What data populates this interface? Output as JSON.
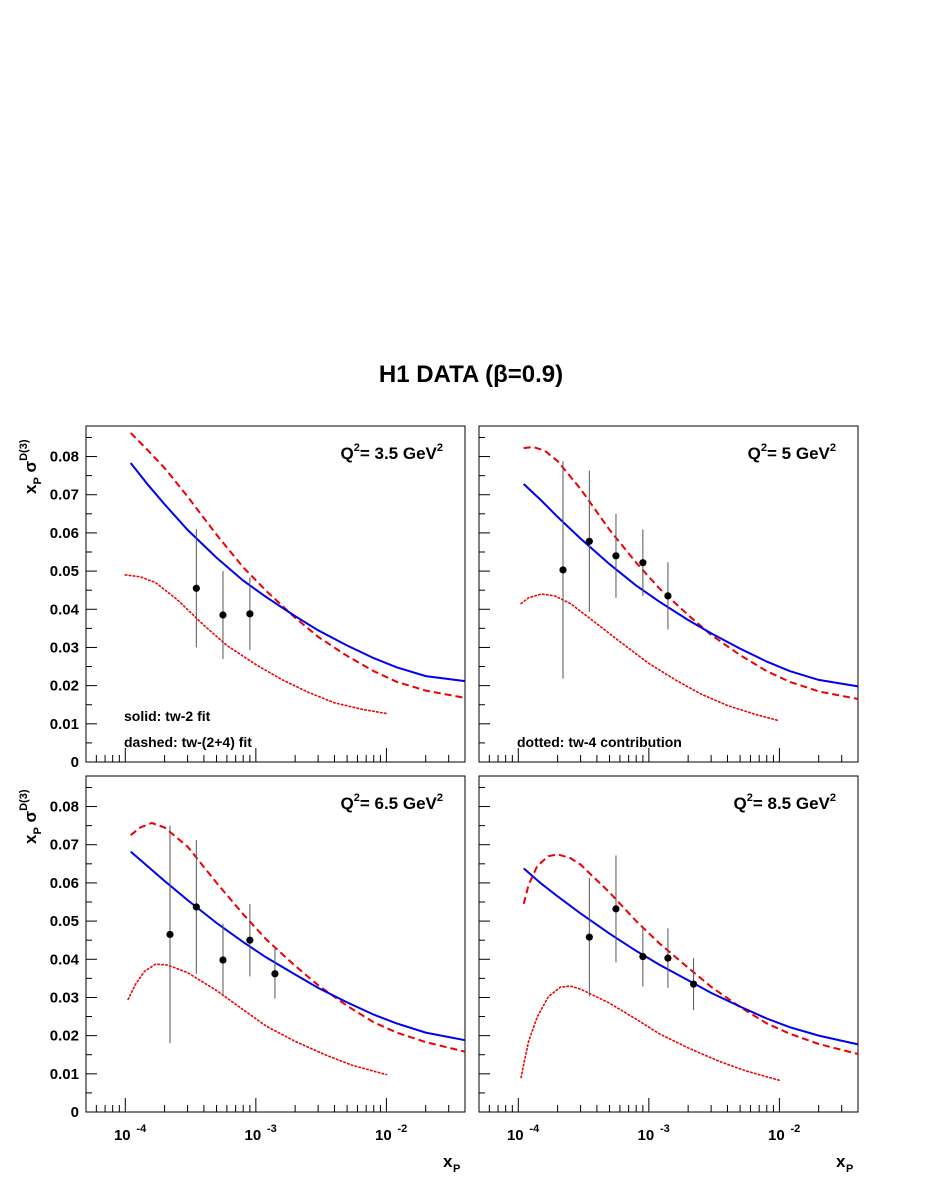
{
  "page": {
    "title": "H1 DATA (β=0.9)"
  },
  "chart_data": {
    "type": "scatter",
    "title": "H1 DATA (β=0.9)",
    "xlabel": "x_P",
    "ylabel": "x_P σ^D(3)",
    "x_scale": "log",
    "xlim": [
      5e-05,
      0.04
    ],
    "ylim": [
      0,
      0.088
    ],
    "y_ticks": [
      0,
      0.01,
      0.02,
      0.03,
      0.04,
      0.05,
      0.06,
      0.07,
      0.08
    ],
    "y_tick_labels": [
      "0",
      "0.01",
      "0.02",
      "0.03",
      "0.04",
      "0.05",
      "0.06",
      "0.07",
      "0.08"
    ],
    "x_tick_labels": [
      {
        "value": 0.0001,
        "base": "10",
        "exp": "-4"
      },
      {
        "value": 0.001,
        "base": "10",
        "exp": "-3"
      },
      {
        "value": 0.01,
        "base": "10",
        "exp": "-2"
      }
    ],
    "legend_notes": {
      "solid": "solid:  tw-2 fit",
      "dashed": "dashed: tw-(2+4) fit",
      "dotted": "dotted:  tw-4 contribution"
    },
    "series_styles": {
      "tw2": {
        "color": "#0000ee",
        "line": "solid"
      },
      "tw24": {
        "color": "#ee0000",
        "line": "dashed"
      },
      "tw4": {
        "color": "#ee0000",
        "line": "dotted"
      },
      "data": {
        "color": "#000000"
      }
    },
    "panels": [
      {
        "label_base": "Q",
        "label_sup": "2",
        "label_mid": "= 3.5 GeV",
        "label_sup2": "2",
        "points": [
          {
            "x": 0.00035,
            "y": 0.0455,
            "err": 0.0155
          },
          {
            "x": 0.00056,
            "y": 0.0385,
            "err": 0.0115
          },
          {
            "x": 0.0009,
            "y": 0.0388,
            "err": 0.0095
          }
        ],
        "tw2": [
          [
            0.00011,
            0.0783
          ],
          [
            0.00015,
            0.0725
          ],
          [
            0.0002,
            0.0675
          ],
          [
            0.0003,
            0.0608
          ],
          [
            0.0005,
            0.0535
          ],
          [
            0.0008,
            0.0475
          ],
          [
            0.0012,
            0.0432
          ],
          [
            0.002,
            0.0382
          ],
          [
            0.003,
            0.0345
          ],
          [
            0.005,
            0.0305
          ],
          [
            0.008,
            0.0272
          ],
          [
            0.012,
            0.0248
          ],
          [
            0.02,
            0.0225
          ],
          [
            0.04,
            0.0212
          ]
        ],
        "tw24": [
          [
            0.00011,
            0.0862
          ],
          [
            0.00015,
            0.0815
          ],
          [
            0.0002,
            0.077
          ],
          [
            0.0003,
            0.0695
          ],
          [
            0.0005,
            0.0595
          ],
          [
            0.0008,
            0.051
          ],
          [
            0.0012,
            0.0448
          ],
          [
            0.002,
            0.0378
          ],
          [
            0.003,
            0.0328
          ],
          [
            0.005,
            0.0278
          ],
          [
            0.008,
            0.0238
          ],
          [
            0.012,
            0.021
          ],
          [
            0.02,
            0.0187
          ],
          [
            0.04,
            0.0168
          ]
        ],
        "tw4": [
          [
            0.0001,
            0.049
          ],
          [
            0.00013,
            0.0485
          ],
          [
            0.00017,
            0.047
          ],
          [
            0.00025,
            0.0425
          ],
          [
            0.0004,
            0.0358
          ],
          [
            0.0006,
            0.0305
          ],
          [
            0.001,
            0.0255
          ],
          [
            0.0016,
            0.0215
          ],
          [
            0.0025,
            0.0183
          ],
          [
            0.004,
            0.0155
          ],
          [
            0.0065,
            0.0138
          ],
          [
            0.01,
            0.0127
          ]
        ]
      },
      {
        "label_base": "Q",
        "label_sup": "2",
        "label_mid": "= 5 GeV",
        "label_sup2": "2",
        "points": [
          {
            "x": 0.00022,
            "y": 0.0503,
            "err": 0.0285
          },
          {
            "x": 0.00035,
            "y": 0.0578,
            "err": 0.0185
          },
          {
            "x": 0.00056,
            "y": 0.054,
            "err": 0.011
          },
          {
            "x": 0.0009,
            "y": 0.0522,
            "err": 0.0087
          },
          {
            "x": 0.0014,
            "y": 0.0435,
            "err": 0.0088
          }
        ],
        "tw2": [
          [
            0.00011,
            0.0728
          ],
          [
            0.00015,
            0.0685
          ],
          [
            0.0002,
            0.0642
          ],
          [
            0.0003,
            0.0585
          ],
          [
            0.0005,
            0.0518
          ],
          [
            0.0008,
            0.0462
          ],
          [
            0.0012,
            0.042
          ],
          [
            0.002,
            0.0372
          ],
          [
            0.003,
            0.0337
          ],
          [
            0.005,
            0.0297
          ],
          [
            0.008,
            0.0263
          ],
          [
            0.012,
            0.0238
          ],
          [
            0.02,
            0.0215
          ],
          [
            0.04,
            0.0198
          ]
        ],
        "tw24": [
          [
            0.00011,
            0.0822
          ],
          [
            0.00013,
            0.0825
          ],
          [
            0.00016,
            0.0815
          ],
          [
            0.0002,
            0.0788
          ],
          [
            0.0003,
            0.0715
          ],
          [
            0.0005,
            0.0608
          ],
          [
            0.0008,
            0.0522
          ],
          [
            0.0012,
            0.0455
          ],
          [
            0.002,
            0.0385
          ],
          [
            0.003,
            0.0333
          ],
          [
            0.005,
            0.028
          ],
          [
            0.008,
            0.0238
          ],
          [
            0.012,
            0.021
          ],
          [
            0.02,
            0.0185
          ],
          [
            0.04,
            0.0165
          ]
        ],
        "tw4": [
          [
            0.000105,
            0.0415
          ],
          [
            0.00012,
            0.043
          ],
          [
            0.00015,
            0.044
          ],
          [
            0.00019,
            0.0435
          ],
          [
            0.00025,
            0.0415
          ],
          [
            0.0004,
            0.0362
          ],
          [
            0.0006,
            0.0315
          ],
          [
            0.001,
            0.0258
          ],
          [
            0.0016,
            0.0215
          ],
          [
            0.0025,
            0.0178
          ],
          [
            0.004,
            0.0148
          ],
          [
            0.0065,
            0.0125
          ],
          [
            0.01,
            0.0108
          ]
        ]
      },
      {
        "label_base": "Q",
        "label_sup": "2",
        "label_mid": "= 6.5 GeV",
        "label_sup2": "2",
        "points": [
          {
            "x": 0.00022,
            "y": 0.0465,
            "err": 0.0285
          },
          {
            "x": 0.00035,
            "y": 0.0537,
            "err": 0.0175
          },
          {
            "x": 0.00056,
            "y": 0.0398,
            "err": 0.0095
          },
          {
            "x": 0.0009,
            "y": 0.045,
            "err": 0.0095
          },
          {
            "x": 0.0014,
            "y": 0.0362,
            "err": 0.0065
          }
        ],
        "tw2": [
          [
            0.00011,
            0.0682
          ],
          [
            0.00015,
            0.0642
          ],
          [
            0.0002,
            0.0605
          ],
          [
            0.0003,
            0.0555
          ],
          [
            0.0005,
            0.0495
          ],
          [
            0.0008,
            0.0445
          ],
          [
            0.0012,
            0.0405
          ],
          [
            0.002,
            0.036
          ],
          [
            0.003,
            0.0325
          ],
          [
            0.005,
            0.0287
          ],
          [
            0.008,
            0.0255
          ],
          [
            0.012,
            0.0232
          ],
          [
            0.02,
            0.0208
          ],
          [
            0.04,
            0.0188
          ]
        ],
        "tw24": [
          [
            0.00011,
            0.0725
          ],
          [
            0.00013,
            0.0745
          ],
          [
            0.00016,
            0.0757
          ],
          [
            0.0002,
            0.0745
          ],
          [
            0.0003,
            0.0695
          ],
          [
            0.0005,
            0.06
          ],
          [
            0.0008,
            0.0518
          ],
          [
            0.0012,
            0.0452
          ],
          [
            0.002,
            0.0383
          ],
          [
            0.003,
            0.0332
          ],
          [
            0.005,
            0.0278
          ],
          [
            0.008,
            0.0235
          ],
          [
            0.012,
            0.0208
          ],
          [
            0.02,
            0.0183
          ],
          [
            0.04,
            0.0158
          ]
        ],
        "tw4": [
          [
            0.000105,
            0.0295
          ],
          [
            0.00012,
            0.0335
          ],
          [
            0.00014,
            0.0368
          ],
          [
            0.00017,
            0.0387
          ],
          [
            0.00021,
            0.0385
          ],
          [
            0.0003,
            0.0365
          ],
          [
            0.0005,
            0.0318
          ],
          [
            0.0008,
            0.0268
          ],
          [
            0.0012,
            0.0225
          ],
          [
            0.002,
            0.0185
          ],
          [
            0.0035,
            0.0148
          ],
          [
            0.0055,
            0.0122
          ],
          [
            0.01,
            0.0098
          ]
        ]
      },
      {
        "label_base": "Q",
        "label_sup": "2",
        "label_mid": "= 8.5 GeV",
        "label_sup2": "2",
        "points": [
          {
            "x": 0.00035,
            "y": 0.0458,
            "err": 0.0155
          },
          {
            "x": 0.00056,
            "y": 0.0532,
            "err": 0.014
          },
          {
            "x": 0.0009,
            "y": 0.0407,
            "err": 0.0078
          },
          {
            "x": 0.0014,
            "y": 0.0403,
            "err": 0.0078
          },
          {
            "x": 0.0022,
            "y": 0.0335,
            "err": 0.0068
          }
        ],
        "tw2": [
          [
            0.00011,
            0.0638
          ],
          [
            0.00015,
            0.0598
          ],
          [
            0.0002,
            0.0565
          ],
          [
            0.0003,
            0.052
          ],
          [
            0.0005,
            0.0467
          ],
          [
            0.0008,
            0.0422
          ],
          [
            0.0012,
            0.0386
          ],
          [
            0.002,
            0.0345
          ],
          [
            0.003,
            0.0312
          ],
          [
            0.005,
            0.0276
          ],
          [
            0.008,
            0.0245
          ],
          [
            0.012,
            0.0222
          ],
          [
            0.02,
            0.02
          ],
          [
            0.04,
            0.0177
          ]
        ],
        "tw24": [
          [
            0.00011,
            0.0545
          ],
          [
            0.00012,
            0.0595
          ],
          [
            0.00014,
            0.0645
          ],
          [
            0.00017,
            0.067
          ],
          [
            0.0002,
            0.0675
          ],
          [
            0.00025,
            0.0665
          ],
          [
            0.0003,
            0.0648
          ],
          [
            0.0005,
            0.0575
          ],
          [
            0.0008,
            0.05
          ],
          [
            0.0012,
            0.0442
          ],
          [
            0.002,
            0.0378
          ],
          [
            0.003,
            0.0328
          ],
          [
            0.005,
            0.0275
          ],
          [
            0.008,
            0.0232
          ],
          [
            0.012,
            0.0205
          ],
          [
            0.02,
            0.0178
          ],
          [
            0.04,
            0.0152
          ]
        ],
        "tw4": [
          [
            0.000105,
            0.009
          ],
          [
            0.00011,
            0.0125
          ],
          [
            0.00012,
            0.0185
          ],
          [
            0.00014,
            0.025
          ],
          [
            0.00017,
            0.0302
          ],
          [
            0.00021,
            0.0327
          ],
          [
            0.00025,
            0.033
          ],
          [
            0.0003,
            0.0322
          ],
          [
            0.0005,
            0.0285
          ],
          [
            0.0008,
            0.0243
          ],
          [
            0.0012,
            0.0205
          ],
          [
            0.002,
            0.0168
          ],
          [
            0.0035,
            0.0132
          ],
          [
            0.0055,
            0.0108
          ],
          [
            0.01,
            0.0083
          ]
        ]
      }
    ]
  }
}
